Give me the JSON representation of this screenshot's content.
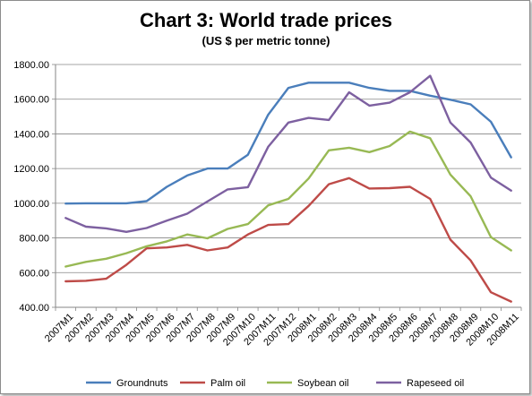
{
  "chart_data": {
    "type": "line",
    "title": "Chart 3: World trade prices",
    "subtitle": "(US $ per metric tonne)",
    "xlabel": "",
    "ylabel": "",
    "ylim": [
      400,
      1800
    ],
    "yticks": [
      "400.00",
      "600.00",
      "800.00",
      "1000.00",
      "1200.00",
      "1400.00",
      "1600.00",
      "1800.00"
    ],
    "ytick_values": [
      400,
      600,
      800,
      1000,
      1200,
      1400,
      1600,
      1800
    ],
    "grid": "horizontal",
    "legend_position": "bottom",
    "categories": [
      "2007M1",
      "2007M2",
      "2007M3",
      "2007M4",
      "2007M5",
      "2007M6",
      "2007M7",
      "2007M8",
      "2007M9",
      "2007M10",
      "2007M11",
      "2007M12",
      "2008M1",
      "2008M2",
      "2008M3",
      "2008M4",
      "2008M5",
      "2008M6",
      "2008M7",
      "2008M8",
      "2008M9",
      "2008M10",
      "2008M11"
    ],
    "series": [
      {
        "name": "Groundnuts",
        "color": "#4a7ebb",
        "values": [
          998,
          1000,
          1000,
          1000,
          1012,
          1095,
          1160,
          1200,
          1200,
          1280,
          1510,
          1665,
          1695,
          1695,
          1695,
          1665,
          1648,
          1648,
          1620,
          1597,
          1570,
          1470,
          1265
        ]
      },
      {
        "name": "Palm oil",
        "color": "#be4b48",
        "values": [
          550,
          553,
          565,
          645,
          740,
          745,
          760,
          728,
          745,
          820,
          875,
          880,
          985,
          1110,
          1145,
          1085,
          1087,
          1095,
          1025,
          790,
          670,
          487,
          433
        ]
      },
      {
        "name": "Soybean oil",
        "color": "#98b954",
        "values": [
          635,
          662,
          680,
          712,
          752,
          780,
          820,
          798,
          852,
          880,
          988,
          1025,
          1143,
          1305,
          1320,
          1295,
          1330,
          1413,
          1375,
          1165,
          1040,
          805,
          728
        ]
      },
      {
        "name": "Rapeseed oil",
        "color": "#7d60a0",
        "values": [
          915,
          865,
          855,
          835,
          857,
          900,
          940,
          1010,
          1080,
          1093,
          1325,
          1465,
          1492,
          1480,
          1640,
          1563,
          1580,
          1640,
          1735,
          1465,
          1350,
          1148,
          1073
        ]
      }
    ]
  }
}
